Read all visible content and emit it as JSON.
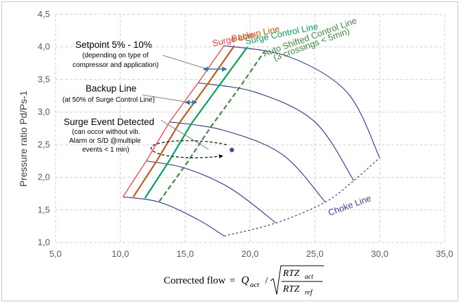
{
  "chart_data": {
    "type": "line",
    "title": "",
    "xlabel": {
      "prefix": "Corrected flow",
      "equals": "=",
      "q": "Q",
      "q_sub": "act",
      "slash": "/",
      "num": "RTZ",
      "num_sub": "act",
      "den": "RTZ",
      "den_sub": "ref"
    },
    "ylabel": "Pressure ratio  Pd/Ps-1",
    "xlim": [
      5,
      35
    ],
    "ylim": [
      1.0,
      4.5
    ],
    "x_ticks": [
      "5,0",
      "10,0",
      "15,0",
      "20,0",
      "25,0",
      "30,0",
      "35,0"
    ],
    "y_ticks": [
      "1,0",
      "1,5",
      "2,0",
      "2,5",
      "3,0",
      "3,5",
      "4,0",
      "4,5"
    ],
    "grid": "dashed",
    "series": [
      {
        "name": "Surge Line",
        "color": "#ff3b3b",
        "style": "solid",
        "x": [
          10.2,
          12.0,
          13.8,
          16.0,
          18.0
        ],
        "y": [
          1.7,
          2.25,
          2.85,
          3.45,
          4.02
        ]
      },
      {
        "name": "Backup Line",
        "color": "#c55a11",
        "style": "solid",
        "x": [
          11.0,
          12.8,
          14.6,
          16.8,
          18.8
        ],
        "y": [
          1.7,
          2.25,
          2.85,
          3.45,
          4.02
        ]
      },
      {
        "name": "Surge Control Line",
        "color": "#00a651",
        "style": "solid",
        "x": [
          11.9,
          13.7,
          15.5,
          17.7,
          19.8
        ],
        "y": [
          1.68,
          2.23,
          2.83,
          3.43,
          4.0
        ]
      },
      {
        "name": "Auto Shifted Control Line",
        "color": "#3c8c3c",
        "style": "dashed",
        "x": [
          13.0,
          15.0,
          17.0,
          19.2,
          21.1
        ],
        "y": [
          1.63,
          2.18,
          2.78,
          3.38,
          3.93
        ]
      },
      {
        "name": "Choke Line",
        "color": "#3a3fa0",
        "style": "dashed",
        "x": [
          18.0,
          22.0,
          25.8,
          28.0,
          30.0
        ],
        "y": [
          1.1,
          1.3,
          1.62,
          1.95,
          2.3
        ]
      }
    ],
    "speed_curves": [
      {
        "x": [
          10.2,
          13.0,
          16.0,
          18.0
        ],
        "y": [
          1.7,
          1.62,
          1.35,
          1.1
        ]
      },
      {
        "x": [
          12.0,
          15.0,
          18.5,
          22.0
        ],
        "y": [
          2.25,
          2.14,
          1.83,
          1.3
        ]
      },
      {
        "x": [
          13.8,
          18.0,
          22.5,
          25.8
        ],
        "y": [
          2.85,
          2.72,
          2.35,
          1.62
        ]
      },
      {
        "x": [
          16.0,
          20.5,
          25.0,
          28.0
        ],
        "y": [
          3.45,
          3.3,
          2.85,
          1.95
        ]
      },
      {
        "x": [
          18.0,
          23.0,
          27.5,
          30.0
        ],
        "y": [
          4.02,
          3.85,
          3.3,
          2.3
        ]
      }
    ],
    "line_labels": {
      "surge": "Surge Line",
      "backup": "Backup Line",
      "surge_control": "Surge Control Line",
      "auto_shifted_1": "Auto Shifted Control Line",
      "auto_shifted_2": "(3 crossings < 5min)",
      "choke": "Choke Line"
    },
    "annotations": {
      "setpoint_title": "Setpoint 5% - 10%",
      "setpoint_note_1": "(depending on type of",
      "setpoint_note_2": "compressor and application)",
      "backup_title": "Backup Line",
      "backup_note": "(at 50% of Surge Control Line)",
      "surge_event_title": "Surge Event Detected",
      "surge_event_note_1": "(can occor without vib.",
      "surge_event_note_2": "Alarm or S/D @multiple",
      "surge_event_note_3": "events < 1 min)"
    },
    "surge_event_point": {
      "x": 18.6,
      "y": 2.42
    },
    "colors": {
      "axis_text": "#595959",
      "grid": "#d0d0d0",
      "speed_curve": "#3a3fa0",
      "arrow": "#2e75b6"
    }
  }
}
